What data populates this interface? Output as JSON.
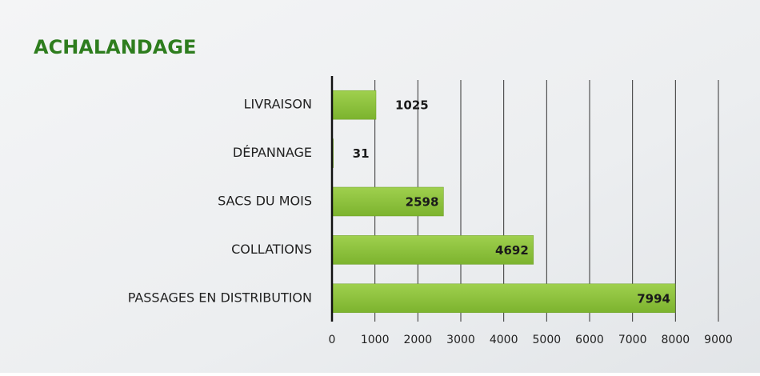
{
  "chart_data": {
    "type": "bar",
    "orientation": "horizontal",
    "title": "ACHALANDAGE",
    "categories": [
      "LIVRAISON",
      "DÉPANNAGE",
      "SACS DU MOIS",
      "COLLATIONS",
      "PASSAGES EN DISTRIBUTION"
    ],
    "values": [
      1025,
      31,
      2598,
      4692,
      7994
    ],
    "color": "#8dc33f",
    "xlim": [
      0,
      9000
    ],
    "xticks": [
      0,
      1000,
      2000,
      3000,
      4000,
      5000,
      6000,
      7000,
      8000,
      9000
    ],
    "grid": true
  }
}
